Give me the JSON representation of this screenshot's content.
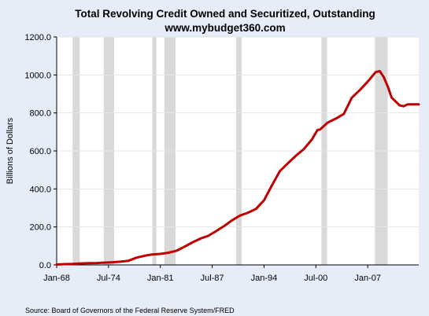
{
  "chart_data": {
    "type": "line",
    "title": "Total Revolving Credit Owned and Securitized, Outstanding",
    "subtitle": "www.mybudget360.com",
    "ylabel": "Billions of Dollars",
    "xlabel": "",
    "source": "Source: Board of Governors of the Federal Reserve System/FRED",
    "ylim": [
      0,
      1200
    ],
    "xlim": [
      1968.0,
      2013.4
    ],
    "y_ticks": [
      0,
      200,
      400,
      600,
      800,
      1000,
      1200
    ],
    "y_tick_labels": [
      "0.0",
      "200.0",
      "400.0",
      "600.0",
      "800.0",
      "1000.0",
      "1200.0"
    ],
    "x_ticks": [
      1968.0,
      1974.5,
      1981.0,
      1987.5,
      1994.0,
      2000.5,
      2007.0
    ],
    "x_tick_labels": [
      "Jan-68",
      "Jul-74",
      "Jan-81",
      "Jul-87",
      "Jan-94",
      "Jul-00",
      "Jan-07"
    ],
    "recessions": [
      [
        1970.0,
        1970.9
      ],
      [
        1973.9,
        1975.2
      ],
      [
        1980.0,
        1980.5
      ],
      [
        1981.5,
        1982.9
      ],
      [
        1990.5,
        1991.2
      ],
      [
        2001.2,
        2001.9
      ],
      [
        2007.9,
        2009.5
      ]
    ],
    "series": [
      {
        "color": "#c00000",
        "x": [
          1968.0,
          1969.0,
          1970.0,
          1971.0,
          1972.0,
          1973.0,
          1974.0,
          1975.0,
          1976.0,
          1977.0,
          1978.0,
          1979.0,
          1980.0,
          1981.0,
          1982.0,
          1983.0,
          1984.0,
          1985.0,
          1986.0,
          1987.0,
          1988.0,
          1989.0,
          1990.0,
          1991.0,
          1992.0,
          1993.0,
          1994.0,
          1995.0,
          1996.0,
          1997.0,
          1998.0,
          1999.0,
          2000.0,
          2000.7,
          2001.0,
          2002.0,
          2003.0,
          2004.0,
          2004.3,
          2005.0,
          2006.0,
          2007.0,
          2008.0,
          2008.5,
          2009.0,
          2009.5,
          2010.0,
          2011.0,
          2011.5,
          2012.0,
          2013.0,
          2013.4
        ],
        "values": [
          2,
          4,
          5,
          8,
          9,
          10,
          12,
          14,
          17,
          22,
          38,
          48,
          55,
          58,
          64,
          74,
          95,
          118,
          138,
          153,
          178,
          205,
          235,
          260,
          275,
          295,
          340,
          420,
          495,
          535,
          575,
          610,
          660,
          710,
          712,
          750,
          770,
          795,
          820,
          880,
          920,
          965,
          1015,
          1020,
          990,
          940,
          880,
          840,
          835,
          845,
          845,
          845
        ]
      }
    ]
  }
}
